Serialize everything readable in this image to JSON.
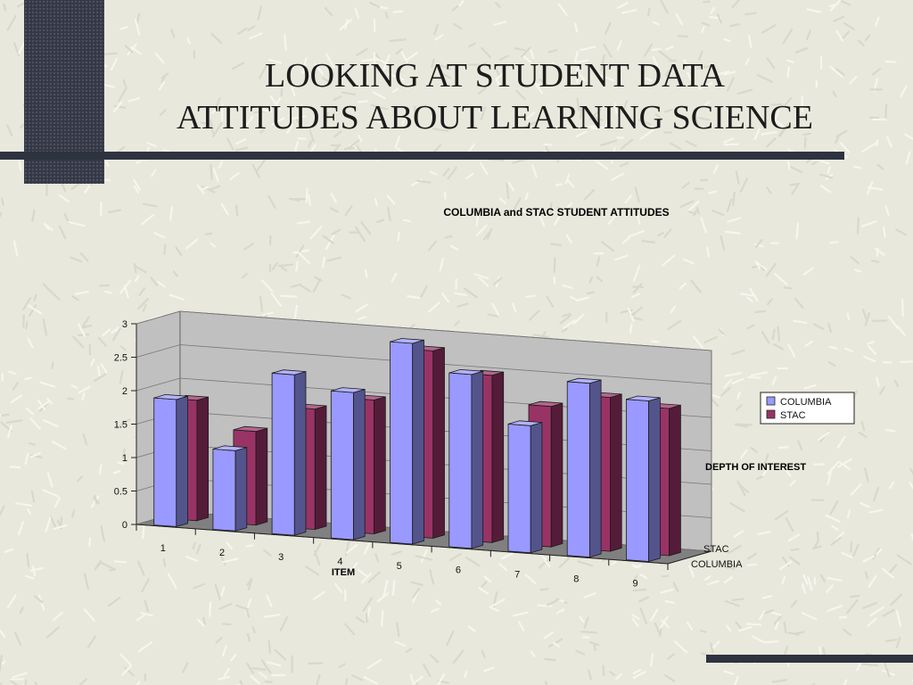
{
  "slide": {
    "title_line1": "LOOKING AT STUDENT DATA",
    "title_line2": "ATTITUDES ABOUT LEARNING SCIENCE"
  },
  "colors": {
    "background": "#e9e8dc",
    "accent_dark": "#2e3340",
    "columbia": "#9999ff",
    "stac": "#993366",
    "plot_wall": "#c0c0c0",
    "plot_floor": "#808080"
  },
  "chart_data": {
    "type": "bar",
    "title": "COLUMBIA and STAC STUDENT ATTITUDES",
    "xlabel": "ITEM",
    "zlabel": "DEPTH OF INTEREST",
    "categories": [
      "1",
      "2",
      "3",
      "4",
      "5",
      "6",
      "7",
      "8",
      "9"
    ],
    "series": [
      {
        "name": "COLUMBIA",
        "color": "#9999ff",
        "values": [
          1.9,
          1.2,
          2.4,
          2.2,
          3.0,
          2.6,
          1.9,
          2.6,
          2.4
        ]
      },
      {
        "name": "STAC",
        "color": "#993366",
        "values": [
          1.8,
          1.4,
          1.8,
          2.0,
          2.8,
          2.5,
          2.1,
          2.3,
          2.2
        ]
      }
    ],
    "depth_labels": [
      "STAC",
      "COLUMBIA"
    ],
    "ylim": [
      0,
      3
    ],
    "yticks": [
      "0",
      "0.5",
      "1",
      "1.5",
      "2",
      "2.5",
      "3"
    ],
    "grid": true,
    "legend_position": "right",
    "is_3d": true
  }
}
